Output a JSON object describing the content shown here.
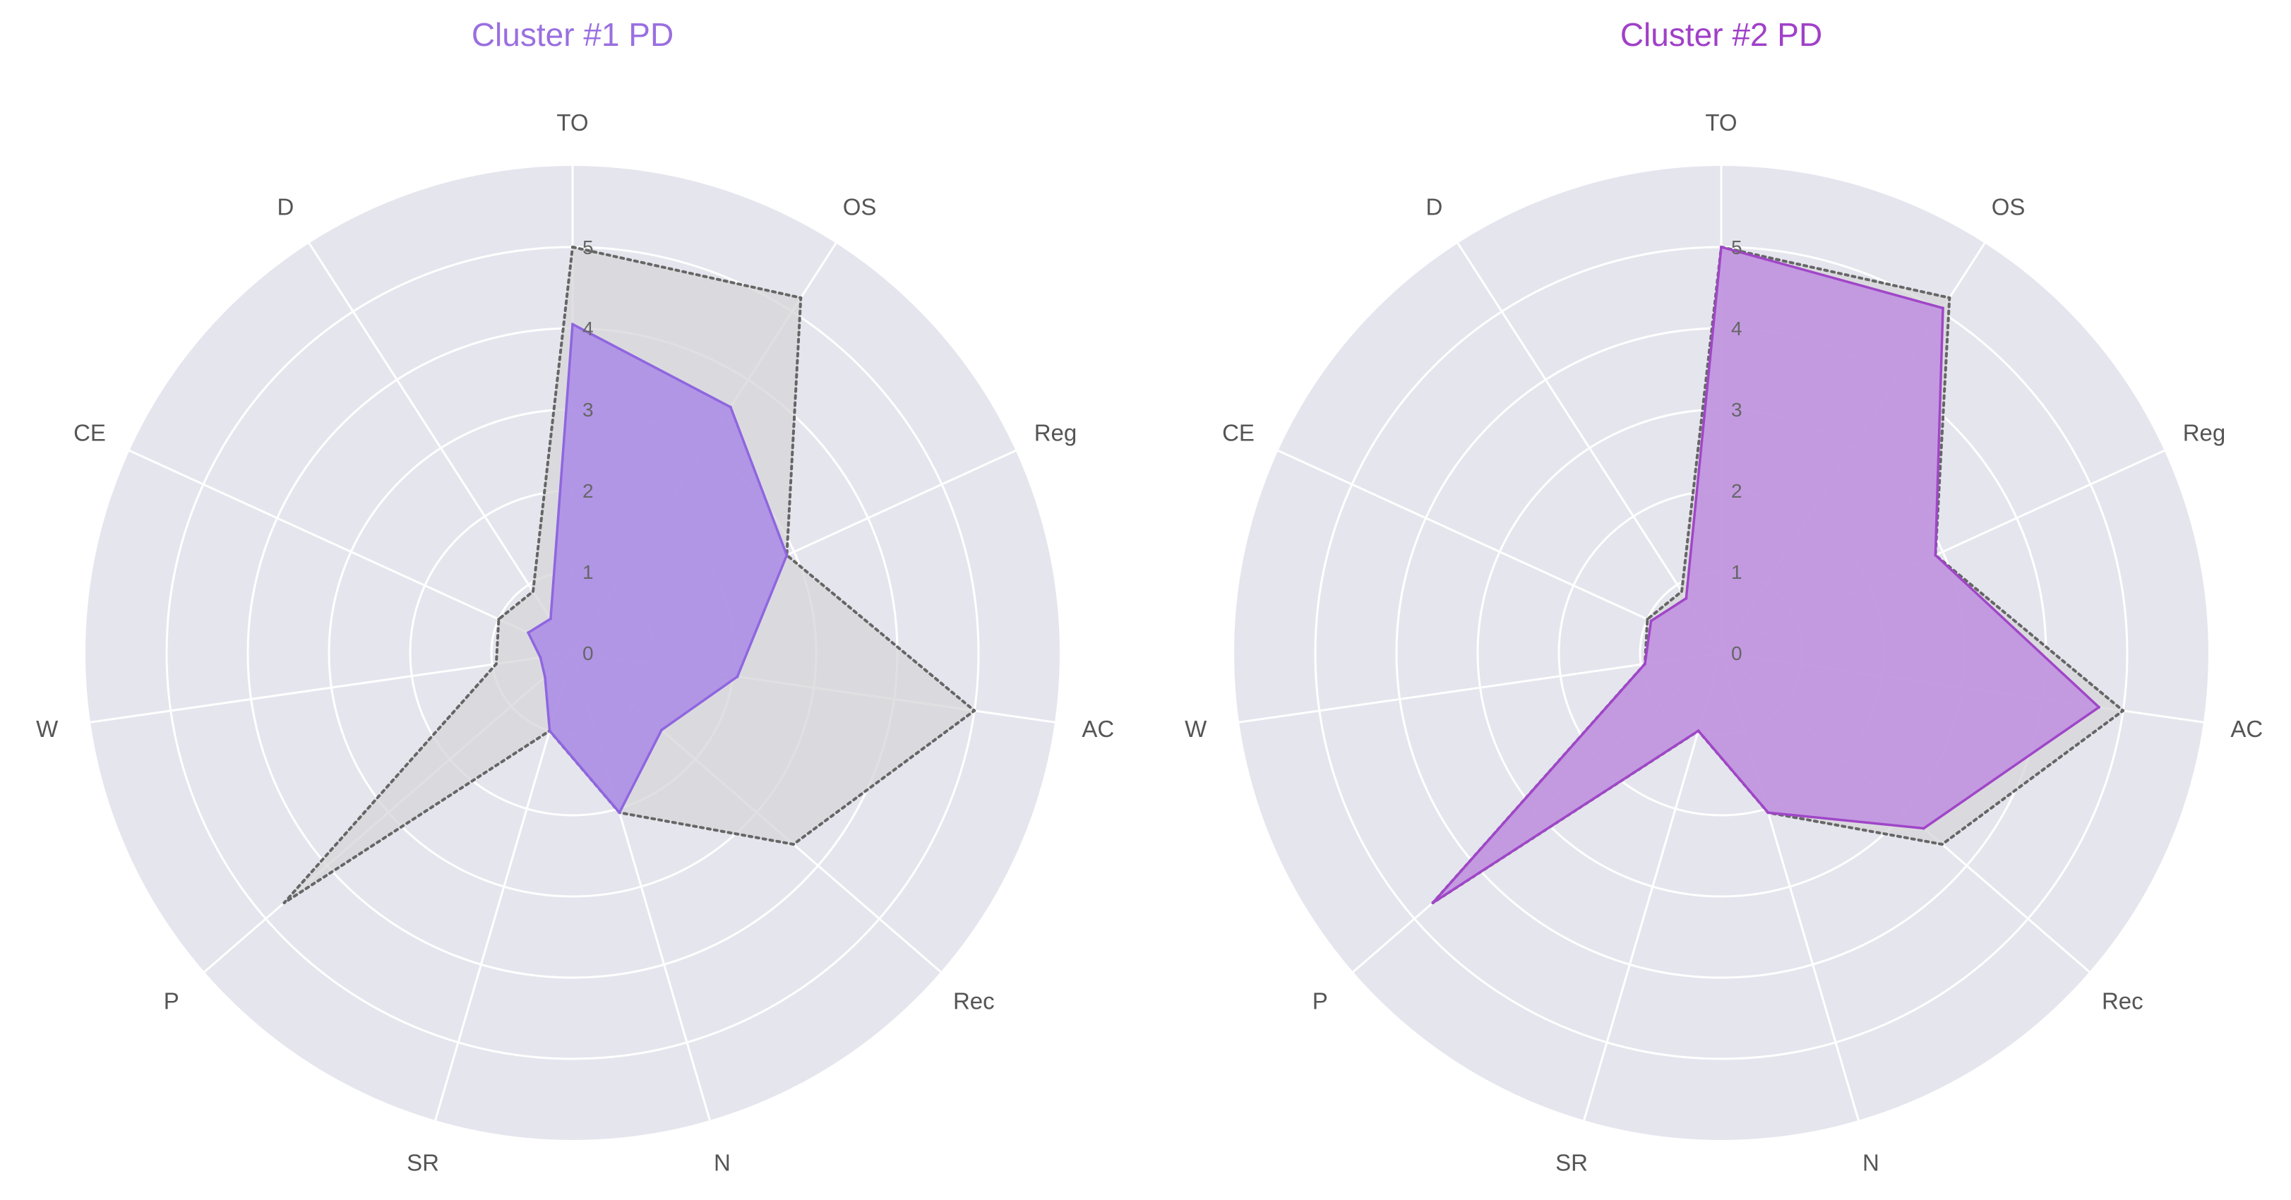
{
  "chart_data": [
    {
      "type": "radar",
      "title": "Cluster #1 PD",
      "title_color": "#9a6fe0",
      "categories": [
        "TO",
        "OS",
        "Reg",
        "AC",
        "Rec",
        "N",
        "SR",
        "P",
        "W",
        "CE",
        "D"
      ],
      "radial_ticks": [
        "0",
        "1",
        "2",
        "3",
        "4",
        "5"
      ],
      "rlim": [
        0,
        6
      ],
      "grid": true,
      "series": [
        {
          "values": [
            4.05,
            3.6,
            2.9,
            2.05,
            1.45,
            2.05,
            1.0,
            0.45,
            0.4,
            0.6,
            0.5
          ],
          "fill": "#a98ae6",
          "line": "#8f66e0",
          "line_style": "solid"
        },
        {
          "values": [
            5.0,
            5.2,
            2.9,
            5.0,
            3.6,
            2.05,
            1.0,
            4.7,
            0.95,
            1.0,
            0.9
          ],
          "fill": "#d6d6d8",
          "line": "#666666",
          "line_style": "dotted"
        }
      ]
    },
    {
      "type": "radar",
      "title": "Cluster #2 PD",
      "title_color": "#a040c8",
      "categories": [
        "TO",
        "OS",
        "Reg",
        "AC",
        "Rec",
        "N",
        "SR",
        "P",
        "W",
        "CE",
        "D"
      ],
      "radial_ticks": [
        "0",
        "1",
        "2",
        "3",
        "4",
        "5"
      ],
      "rlim": [
        0,
        6
      ],
      "grid": true,
      "series": [
        {
          "values": [
            5.0,
            5.05,
            2.9,
            4.7,
            3.3,
            2.05,
            1.0,
            4.7,
            0.95,
            0.95,
            0.8
          ],
          "fill": "#be8ee0",
          "line": "#a046c8",
          "line_style": "solid"
        },
        {
          "values": [
            5.0,
            5.2,
            2.9,
            5.0,
            3.6,
            2.05,
            1.0,
            4.7,
            0.95,
            1.0,
            0.9
          ],
          "fill": "#d6d6d8",
          "line": "#666666",
          "line_style": "dotted"
        }
      ]
    }
  ]
}
